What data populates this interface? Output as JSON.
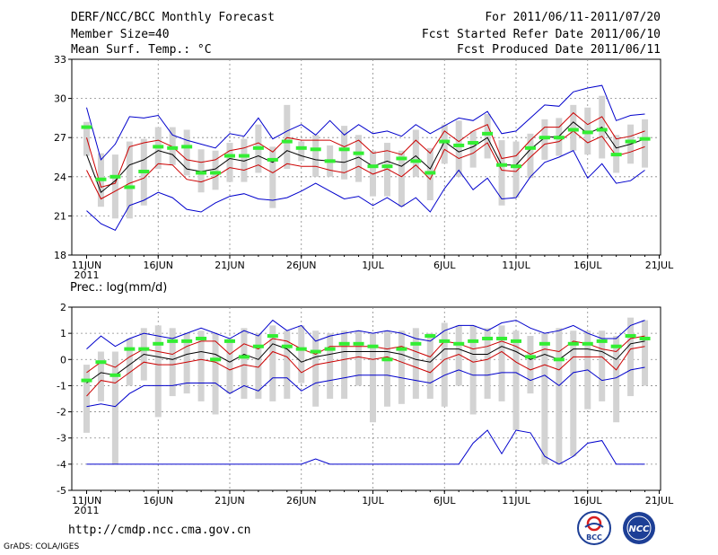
{
  "header": {
    "title": "DERF/NCC/BCC Monthly Forecast",
    "member_size": "Member Size=40",
    "variable": "Mean Surf. Temp.: °C",
    "period": "For 2011/06/11-2011/07/20",
    "fcst_started": "Fcst Started Refer Date 2011/06/10",
    "fcst_produced": "Fcst Produced Date 2011/06/11"
  },
  "footer": {
    "url": "http://cmdp.ncc.cma.gov.cn",
    "grads": "GrADS: COLA/IGES",
    "logo1": "BCC",
    "logo2": "NCC"
  },
  "colors": {
    "ensemble_mean": "#000000",
    "spread": "#cc0000",
    "extreme": "#0000cc",
    "observed": "#33ee33",
    "box": "#d3d3d3"
  },
  "chart_data": [
    {
      "type": "line",
      "title": "Mean Surf. Temp.: °C",
      "x_ticks": [
        "11JUN",
        "16JUN",
        "21JUN",
        "26JUN",
        "1JUL",
        "6JUL",
        "11JUL",
        "16JUL",
        "21JUL"
      ],
      "x_year": "2011",
      "ylim": [
        18,
        33
      ],
      "yticks": [
        "33",
        "30",
        "27",
        "24",
        "21",
        "18"
      ],
      "days": 40,
      "series": [
        {
          "name": "max",
          "values": [
            29.3,
            25.3,
            26.5,
            28.6,
            28.5,
            28.7,
            27.2,
            26.8,
            26.5,
            26.2,
            27.3,
            27.1,
            28.5,
            26.9,
            27.5,
            28.0,
            27.2,
            28.3,
            27.2,
            28.0,
            27.3,
            27.5,
            27.1,
            28.0,
            27.3,
            27.9,
            28.5,
            28.3,
            29.0,
            27.3,
            27.5,
            28.5,
            29.5,
            29.4,
            30.5,
            30.8,
            31.0,
            28.3,
            28.7,
            28.8
          ]
        },
        {
          "name": "upper",
          "values": [
            27.0,
            23.2,
            23.5,
            26.3,
            26.6,
            26.8,
            26.3,
            25.3,
            25.1,
            25.3,
            26.0,
            26.2,
            26.6,
            25.9,
            27.0,
            26.8,
            26.8,
            26.8,
            26.3,
            26.8,
            25.8,
            26.0,
            25.7,
            26.8,
            25.8,
            27.5,
            26.7,
            27.5,
            28.0,
            25.4,
            25.6,
            26.8,
            27.8,
            27.8,
            28.9,
            28.0,
            28.6,
            26.9,
            27.1,
            27.5
          ]
        },
        {
          "name": "mean",
          "values": [
            25.7,
            22.8,
            23.7,
            24.9,
            25.3,
            26.0,
            25.7,
            24.6,
            24.4,
            24.6,
            25.4,
            25.2,
            25.6,
            25.1,
            26.0,
            25.6,
            25.3,
            25.2,
            25.1,
            25.5,
            24.8,
            25.2,
            24.8,
            25.6,
            24.6,
            26.7,
            25.9,
            26.3,
            27.0,
            24.9,
            24.9,
            26.1,
            27.0,
            27.1,
            28.2,
            27.3,
            27.8,
            26.2,
            26.5,
            26.9
          ]
        },
        {
          "name": "lower",
          "values": [
            24.5,
            22.3,
            22.9,
            23.5,
            23.9,
            25.0,
            24.9,
            23.8,
            23.6,
            24.0,
            24.7,
            24.5,
            24.9,
            24.3,
            25.0,
            24.8,
            24.8,
            24.5,
            24.3,
            24.8,
            24.2,
            24.6,
            24.0,
            24.9,
            23.8,
            26.1,
            25.4,
            25.8,
            26.6,
            24.5,
            24.4,
            25.5,
            26.5,
            26.7,
            27.5,
            26.6,
            27.1,
            25.6,
            25.9,
            26.3
          ]
        },
        {
          "name": "min",
          "values": [
            21.4,
            20.4,
            19.9,
            21.8,
            22.2,
            22.8,
            22.4,
            21.5,
            21.3,
            22.0,
            22.5,
            22.7,
            22.3,
            22.2,
            22.4,
            22.9,
            23.5,
            22.9,
            22.3,
            22.5,
            21.8,
            22.4,
            21.7,
            22.4,
            21.3,
            23.1,
            24.5,
            23.0,
            23.9,
            22.3,
            22.4,
            24.0,
            25.1,
            25.5,
            26.0,
            23.9,
            25.0,
            23.5,
            23.7,
            24.5
          ]
        },
        {
          "name": "observed",
          "values": [
            27.8,
            23.8,
            24.0,
            23.2,
            24.4,
            26.3,
            26.2,
            26.3,
            24.3,
            24.3,
            25.6,
            25.6,
            26.2,
            25.3,
            26.7,
            26.2,
            26.1,
            25.2,
            26.1,
            25.8,
            24.8,
            24.8,
            25.4,
            25.2,
            24.3,
            26.7,
            26.4,
            26.6,
            27.3,
            24.9,
            24.8,
            26.2,
            27.0,
            27.0,
            27.6,
            27.4,
            27.6,
            25.7,
            26.7,
            26.9
          ]
        },
        {
          "name": "box_top",
          "values": [
            28.2,
            25.8,
            25.7,
            26.7,
            26.9,
            27.8,
            27.8,
            27.6,
            26.1,
            26.0,
            26.6,
            26.9,
            28.0,
            26.3,
            29.5,
            26.7,
            27.2,
            26.4,
            27.9,
            27.2,
            26.0,
            26.6,
            26.0,
            27.6,
            26.2,
            28.0,
            28.3,
            27.5,
            28.8,
            26.8,
            26.7,
            27.3,
            28.4,
            28.5,
            29.5,
            29.3,
            30.2,
            27.2,
            28.0,
            28.4
          ]
        },
        {
          "name": "box_bottom",
          "values": [
            25.6,
            21.7,
            20.8,
            20.8,
            21.8,
            24.6,
            24.9,
            24.1,
            22.8,
            23.0,
            23.6,
            23.6,
            24.3,
            21.6,
            24.6,
            25.2,
            24.0,
            24.0,
            23.8,
            23.6,
            22.5,
            22.5,
            21.7,
            24.0,
            22.2,
            25.0,
            24.0,
            24.7,
            25.4,
            21.8,
            22.4,
            23.9,
            25.3,
            25.6,
            26.0,
            25.7,
            25.4,
            24.3,
            25.0,
            24.7
          ]
        }
      ]
    },
    {
      "type": "line",
      "title": "Prec.: log(mm/d)",
      "x_ticks": [
        "11JUN",
        "16JUN",
        "21JUN",
        "26JUN",
        "1JUL",
        "6JUL",
        "11JUL",
        "16JUL",
        "21JUL"
      ],
      "x_year": "2011",
      "ylim": [
        -5,
        2
      ],
      "yticks": [
        "2",
        "1",
        "0",
        "-1",
        "-2",
        "-3",
        "-4",
        "-5"
      ],
      "days": 40,
      "series": [
        {
          "name": "max",
          "values": [
            0.4,
            0.9,
            0.5,
            0.8,
            1.0,
            0.9,
            0.8,
            1.0,
            1.2,
            1.0,
            0.8,
            1.1,
            0.9,
            1.5,
            1.1,
            1.3,
            0.7,
            0.9,
            1.0,
            1.1,
            1.0,
            1.1,
            1.0,
            0.8,
            0.7,
            1.1,
            1.3,
            1.3,
            1.1,
            1.4,
            1.5,
            1.2,
            1.0,
            1.1,
            1.3,
            1.0,
            0.8,
            0.8,
            1.3,
            1.5
          ]
        },
        {
          "name": "upper",
          "values": [
            -0.5,
            -0.1,
            -0.3,
            0.1,
            0.4,
            0.3,
            0.2,
            0.5,
            0.7,
            0.7,
            0.2,
            0.6,
            0.4,
            0.8,
            0.7,
            0.4,
            0.2,
            0.5,
            0.5,
            0.5,
            0.5,
            0.4,
            0.5,
            0.3,
            0.1,
            0.7,
            0.6,
            0.4,
            0.5,
            0.7,
            0.5,
            0.2,
            0.4,
            0.3,
            0.7,
            0.6,
            0.4,
            0.3,
            0.8,
            0.9
          ]
        },
        {
          "name": "mean",
          "values": [
            -0.9,
            -0.5,
            -0.6,
            -0.2,
            0.2,
            0.1,
            0.0,
            0.2,
            0.3,
            0.2,
            -0.1,
            0.2,
            0.0,
            0.6,
            0.4,
            -0.1,
            0.1,
            0.2,
            0.3,
            0.3,
            0.3,
            0.3,
            0.2,
            0.0,
            -0.1,
            0.4,
            0.4,
            0.2,
            0.2,
            0.5,
            0.3,
            0.0,
            0.2,
            0.0,
            0.4,
            0.4,
            0.3,
            0.0,
            0.6,
            0.7
          ]
        },
        {
          "name": "lower",
          "values": [
            -1.4,
            -0.8,
            -0.9,
            -0.5,
            -0.1,
            -0.2,
            -0.2,
            -0.1,
            0.0,
            -0.1,
            -0.4,
            -0.2,
            -0.3,
            0.3,
            0.1,
            -0.5,
            -0.2,
            -0.1,
            0.0,
            0.1,
            0.0,
            0.1,
            -0.1,
            -0.3,
            -0.5,
            0.0,
            0.2,
            -0.1,
            0.0,
            0.3,
            -0.1,
            -0.4,
            -0.2,
            -0.4,
            0.1,
            0.1,
            0.1,
            -0.4,
            0.4,
            0.5
          ]
        },
        {
          "name": "min",
          "values": [
            -1.8,
            -1.7,
            -1.8,
            -1.3,
            -1.0,
            -1.0,
            -1.0,
            -0.9,
            -0.9,
            -0.9,
            -1.3,
            -1.0,
            -1.2,
            -0.7,
            -0.7,
            -1.2,
            -0.9,
            -0.8,
            -0.7,
            -0.6,
            -0.6,
            -0.6,
            -0.7,
            -0.8,
            -0.9,
            -0.6,
            -0.4,
            -0.6,
            -0.6,
            -0.5,
            -0.5,
            -0.8,
            -0.6,
            -1.0,
            -0.5,
            -0.4,
            -0.8,
            -0.7,
            -0.4,
            -0.3
          ]
        },
        {
          "name": "min_lower",
          "values": [
            -4.0,
            -4.0,
            -4.0,
            -4.0,
            -4.0,
            -4.0,
            -4.0,
            -4.0,
            -4.0,
            -4.0,
            -4.0,
            -4.0,
            -4.0,
            -4.0,
            -4.0,
            -4.0,
            -3.8,
            -4.0,
            -4.0,
            -4.0,
            -4.0,
            -4.0,
            -4.0,
            -4.0,
            -4.0,
            -4.0,
            -4.0,
            -3.2,
            -2.7,
            -3.6,
            -2.7,
            -2.8,
            -3.7,
            -4.0,
            -3.7,
            -3.2,
            -3.1,
            -4.0,
            -4.0,
            -4.0
          ]
        },
        {
          "name": "observed",
          "values": [
            -0.8,
            -0.1,
            -0.6,
            0.4,
            0.4,
            0.6,
            0.7,
            0.7,
            0.8,
            0.0,
            0.7,
            0.1,
            0.5,
            0.9,
            0.5,
            0.4,
            0.3,
            0.4,
            0.6,
            0.6,
            0.5,
            0.0,
            0.4,
            0.6,
            0.9,
            0.7,
            0.6,
            0.7,
            0.8,
            0.8,
            0.7,
            0.1,
            0.6,
            0.0,
            0.6,
            0.6,
            0.7,
            0.5,
            0.9,
            0.8
          ]
        },
        {
          "name": "box_top",
          "values": [
            -0.2,
            0.3,
            0.3,
            0.8,
            1.2,
            1.3,
            1.2,
            1.0,
            1.1,
            1.0,
            0.8,
            1.2,
            1.0,
            1.3,
            1.1,
            1.3,
            1.1,
            1.0,
            1.1,
            1.1,
            1.0,
            1.1,
            1.1,
            1.2,
            1.0,
            1.4,
            1.3,
            1.3,
            1.2,
            1.3,
            1.1,
            0.9,
            1.0,
            1.2,
            1.1,
            1.1,
            1.1,
            0.9,
            1.6,
            1.5
          ]
        },
        {
          "name": "box_bottom",
          "values": [
            -2.8,
            -1.6,
            -4.0,
            -1.0,
            -0.8,
            -2.2,
            -1.4,
            -1.3,
            -1.6,
            -2.1,
            -1.3,
            -1.5,
            -1.5,
            -1.6,
            -1.5,
            -0.9,
            -1.8,
            -1.5,
            -1.5,
            -1.0,
            -2.4,
            -1.8,
            -1.7,
            -1.5,
            -1.5,
            -1.8,
            -1.0,
            -2.1,
            -1.5,
            -1.6,
            -2.7,
            -1.3,
            -4.0,
            -4.0,
            -3.7,
            -1.9,
            -1.6,
            -2.4,
            -1.4,
            -1.0
          ]
        }
      ]
    }
  ]
}
